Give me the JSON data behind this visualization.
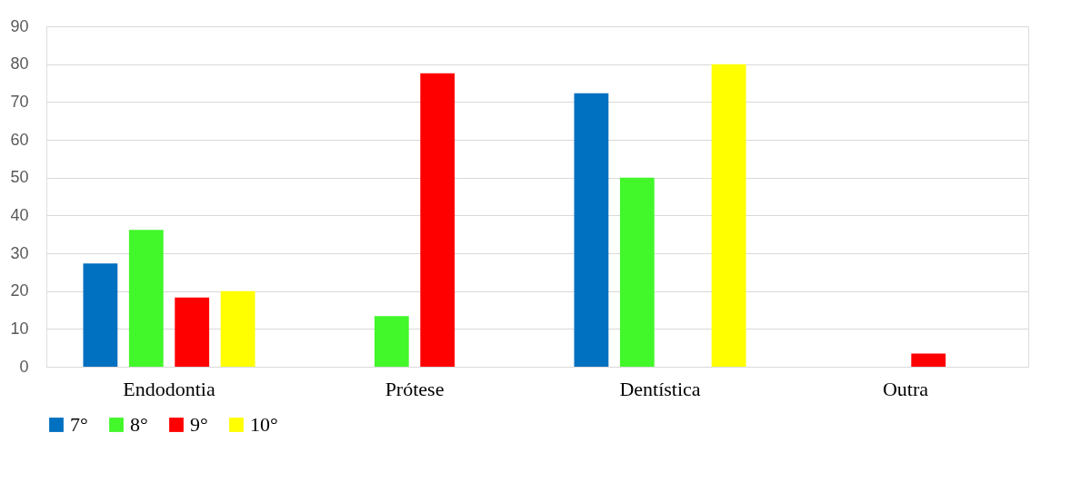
{
  "chart_data": {
    "type": "bar",
    "categories": [
      "Endodontia",
      "Prótese",
      "Dentística",
      "Outra"
    ],
    "series": [
      {
        "name": "7°",
        "color": "#0070c0",
        "values": [
          27.3,
          0,
          72.3,
          0
        ]
      },
      {
        "name": "8°",
        "color": "#42f72a",
        "values": [
          36.2,
          13.4,
          50,
          0
        ]
      },
      {
        "name": "9°",
        "color": "#ff0000",
        "values": [
          18.3,
          77.6,
          0,
          3.5
        ]
      },
      {
        "name": "10°",
        "color": "#ffff00",
        "values": [
          20,
          0,
          80,
          0
        ]
      }
    ],
    "ylim": [
      0,
      90
    ],
    "yticks": [
      0,
      10,
      20,
      30,
      40,
      50,
      60,
      70,
      80,
      90
    ],
    "grid": "y",
    "legend": "bottom"
  }
}
